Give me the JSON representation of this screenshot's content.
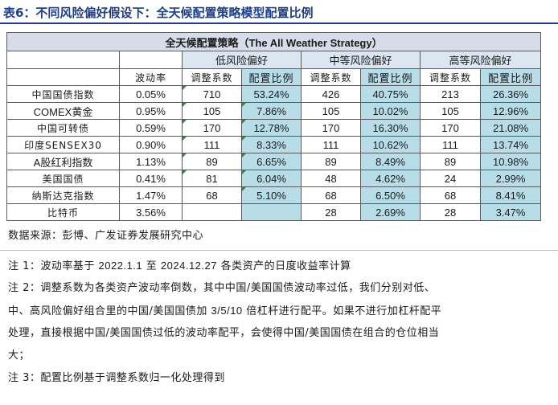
{
  "title": "表6：不同风险偏好假设下：全天候配置策略模型配置比例",
  "table": {
    "strategy_title_cn": "全天候配置策略",
    "strategy_title_en": "（The All Weather Strategy）",
    "groups": [
      "低风险偏好",
      "中等风险偏好",
      "高等风险偏好"
    ],
    "vol_header": "波动率",
    "sub_headers": [
      "调整系数",
      "配置比例"
    ],
    "rows": [
      {
        "asset": "中国国债指数",
        "vol": "0.05%",
        "low_coef": "710",
        "low_pct": "53.24%",
        "mid_coef": "426",
        "mid_pct": "40.75%",
        "high_coef": "213",
        "high_pct": "26.36%"
      },
      {
        "asset": "COMEX黄金",
        "vol": "0.95%",
        "low_coef": "105",
        "low_pct": "7.86%",
        "mid_coef": "105",
        "mid_pct": "10.02%",
        "high_coef": "105",
        "high_pct": "12.96%"
      },
      {
        "asset": "中国可转债",
        "vol": "0.59%",
        "low_coef": "170",
        "low_pct": "12.78%",
        "mid_coef": "170",
        "mid_pct": "16.30%",
        "high_coef": "170",
        "high_pct": "21.08%"
      },
      {
        "asset": "印度SENSEX30",
        "vol": "0.90%",
        "low_coef": "111",
        "low_pct": "8.33%",
        "mid_coef": "111",
        "mid_pct": "10.62%",
        "high_coef": "111",
        "high_pct": "13.74%"
      },
      {
        "asset": "A股红利指数",
        "vol": "1.13%",
        "low_coef": "89",
        "low_pct": "6.65%",
        "mid_coef": "89",
        "mid_pct": "8.49%",
        "high_coef": "89",
        "high_pct": "10.98%"
      },
      {
        "asset": "美国国债",
        "vol": "0.41%",
        "low_coef": "81",
        "low_pct": "6.04%",
        "mid_coef": "48",
        "mid_pct": "4.62%",
        "high_coef": "24",
        "high_pct": "2.99%"
      },
      {
        "asset": "纳斯达克指数",
        "vol": "1.47%",
        "low_coef": "68",
        "low_pct": "5.10%",
        "mid_coef": "68",
        "mid_pct": "6.50%",
        "high_coef": "68",
        "high_pct": "8.41%"
      },
      {
        "asset": "比特币",
        "vol": "3.56%",
        "low_coef": "",
        "low_pct": "",
        "mid_coef": "28",
        "mid_pct": "2.69%",
        "high_coef": "28",
        "high_pct": "3.47%"
      }
    ]
  },
  "notes": {
    "source": "数据来源：彭博、广发证券发展研究中心",
    "note1_a": "注 1：波动率基于 ",
    "note1_b": "2022.1.1",
    "note1_c": " 至 ",
    "note1_d": "2024.12.27",
    "note1_e": " 各类资产的日度收益率计算",
    "note2_line1": "注 2：调整系数为各类资产波动率倒数，其中中国/美国国债波动率过低，我们分别对低、",
    "note2_line2_a": "中、高风险偏好组合里的中国/美国国债加 ",
    "note2_line2_b": "3/5/10",
    "note2_line2_c": " 倍杠杆进行配平。如果不进行加杠杆配平",
    "note2_line3": "处理，直接根据中国/美国国债过低的波动率配平，会使得中国/美国国债在组合的仓位相当",
    "note2_line4": "大；",
    "note3": "注 3：配置比例基于调整系数归一化处理得到"
  }
}
